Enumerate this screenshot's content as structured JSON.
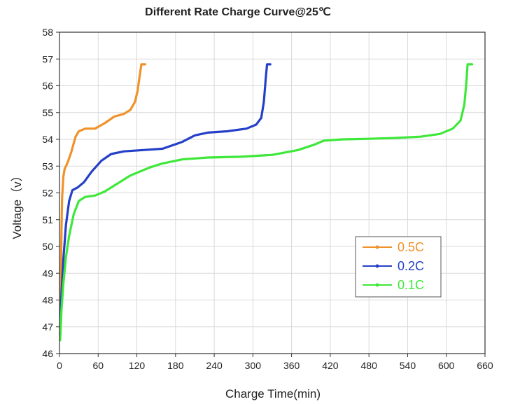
{
  "chart_data": {
    "type": "line",
    "title": "Different Rate Charge Curve@25℃",
    "xlabel": "Charge Time(min)",
    "ylabel": "Voltage（v）",
    "xlim": [
      0,
      660
    ],
    "ylim": [
      46,
      58
    ],
    "xticks": [
      "0",
      "60",
      "120",
      "180",
      "240",
      "300",
      "360",
      "420",
      "480",
      "540",
      "600",
      "660"
    ],
    "yticks": [
      "46",
      "47",
      "48",
      "49",
      "50",
      "51",
      "52",
      "53",
      "54",
      "55",
      "56",
      "57",
      "58"
    ],
    "grid": true,
    "legend_position": "right-middle",
    "series": [
      {
        "name": "0.5C",
        "color": "#f0922a",
        "points": [
          [
            1,
            46.9
          ],
          [
            2,
            48.5
          ],
          [
            3,
            50.5
          ],
          [
            4,
            51.8
          ],
          [
            6,
            52.6
          ],
          [
            8,
            52.9
          ],
          [
            12,
            53.1
          ],
          [
            18,
            53.5
          ],
          [
            25,
            54.1
          ],
          [
            30,
            54.3
          ],
          [
            40,
            54.4
          ],
          [
            55,
            54.4
          ],
          [
            70,
            54.6
          ],
          [
            85,
            54.85
          ],
          [
            100,
            54.95
          ],
          [
            110,
            55.1
          ],
          [
            117,
            55.4
          ],
          [
            121,
            55.8
          ],
          [
            124,
            56.3
          ],
          [
            127,
            56.8
          ],
          [
            133,
            56.8
          ]
        ]
      },
      {
        "name": "0.2C",
        "color": "#2540c8",
        "points": [
          [
            1,
            46.7
          ],
          [
            3,
            48.2
          ],
          [
            6,
            49.5
          ],
          [
            10,
            50.8
          ],
          [
            15,
            51.7
          ],
          [
            20,
            52.1
          ],
          [
            28,
            52.2
          ],
          [
            38,
            52.4
          ],
          [
            50,
            52.8
          ],
          [
            65,
            53.2
          ],
          [
            80,
            53.45
          ],
          [
            100,
            53.55
          ],
          [
            130,
            53.6
          ],
          [
            160,
            53.65
          ],
          [
            190,
            53.9
          ],
          [
            210,
            54.15
          ],
          [
            230,
            54.25
          ],
          [
            260,
            54.3
          ],
          [
            290,
            54.4
          ],
          [
            305,
            54.55
          ],
          [
            313,
            54.8
          ],
          [
            317,
            55.4
          ],
          [
            320,
            56.3
          ],
          [
            322,
            56.8
          ],
          [
            327,
            56.8
          ]
        ]
      },
      {
        "name": "0.1C",
        "color": "#3ee83a",
        "points": [
          [
            1,
            46.5
          ],
          [
            3,
            47.6
          ],
          [
            6,
            48.6
          ],
          [
            10,
            49.6
          ],
          [
            15,
            50.4
          ],
          [
            22,
            51.2
          ],
          [
            30,
            51.7
          ],
          [
            40,
            51.85
          ],
          [
            55,
            51.9
          ],
          [
            70,
            52.05
          ],
          [
            90,
            52.35
          ],
          [
            110,
            52.65
          ],
          [
            125,
            52.8
          ],
          [
            140,
            52.95
          ],
          [
            160,
            53.1
          ],
          [
            190,
            53.25
          ],
          [
            230,
            53.32
          ],
          [
            280,
            53.35
          ],
          [
            330,
            53.42
          ],
          [
            370,
            53.6
          ],
          [
            395,
            53.8
          ],
          [
            410,
            53.95
          ],
          [
            440,
            54.0
          ],
          [
            480,
            54.02
          ],
          [
            520,
            54.05
          ],
          [
            560,
            54.1
          ],
          [
            590,
            54.2
          ],
          [
            610,
            54.4
          ],
          [
            622,
            54.7
          ],
          [
            628,
            55.3
          ],
          [
            631,
            56.1
          ],
          [
            633,
            56.8
          ],
          [
            640,
            56.8
          ]
        ]
      }
    ]
  }
}
